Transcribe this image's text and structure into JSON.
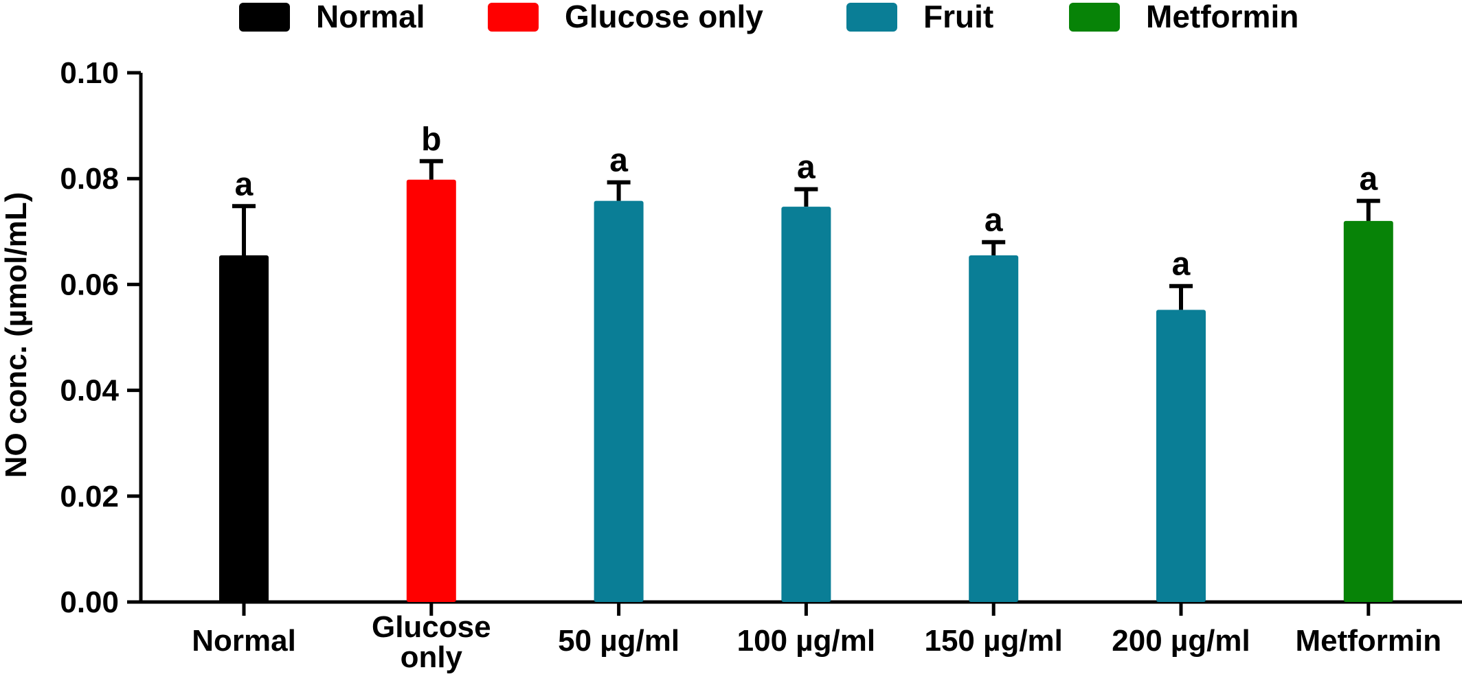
{
  "chart_data": {
    "type": "bar",
    "title": "",
    "xlabel": "",
    "ylabel": "NO conc. (µmol/mL)",
    "ylim": [
      0,
      0.1
    ],
    "yticks": [
      "0.00",
      "0.02",
      "0.04",
      "0.06",
      "0.08",
      "0.10"
    ],
    "grid": false,
    "legend_position": "top",
    "legend": [
      {
        "label": "Normal",
        "color": "#000000"
      },
      {
        "label": "Glucose only",
        "color": "#ff0000"
      },
      {
        "label": "Fruit",
        "color": "#0a7e96"
      },
      {
        "label": "Metformin",
        "color": "#078307"
      }
    ],
    "categories": [
      [
        "Normal"
      ],
      [
        "Glucose",
        "only"
      ],
      [
        "50 µg/ml"
      ],
      [
        "100 µg/ml"
      ],
      [
        "150 µg/ml"
      ],
      [
        "200 µg/ml"
      ],
      [
        "Metformin"
      ]
    ],
    "values": [
      0.0655,
      0.0798,
      0.0758,
      0.0747,
      0.0655,
      0.0552,
      0.072
    ],
    "errors": [
      0.0093,
      0.0035,
      0.0035,
      0.0033,
      0.0025,
      0.0045,
      0.0038
    ],
    "significance_labels": [
      "a",
      "b",
      "a",
      "a",
      "a",
      "a",
      "a"
    ],
    "bar_colors": [
      "#000000",
      "#ff0000",
      "#0a7e96",
      "#0a7e96",
      "#0a7e96",
      "#0a7e96",
      "#078307"
    ]
  }
}
